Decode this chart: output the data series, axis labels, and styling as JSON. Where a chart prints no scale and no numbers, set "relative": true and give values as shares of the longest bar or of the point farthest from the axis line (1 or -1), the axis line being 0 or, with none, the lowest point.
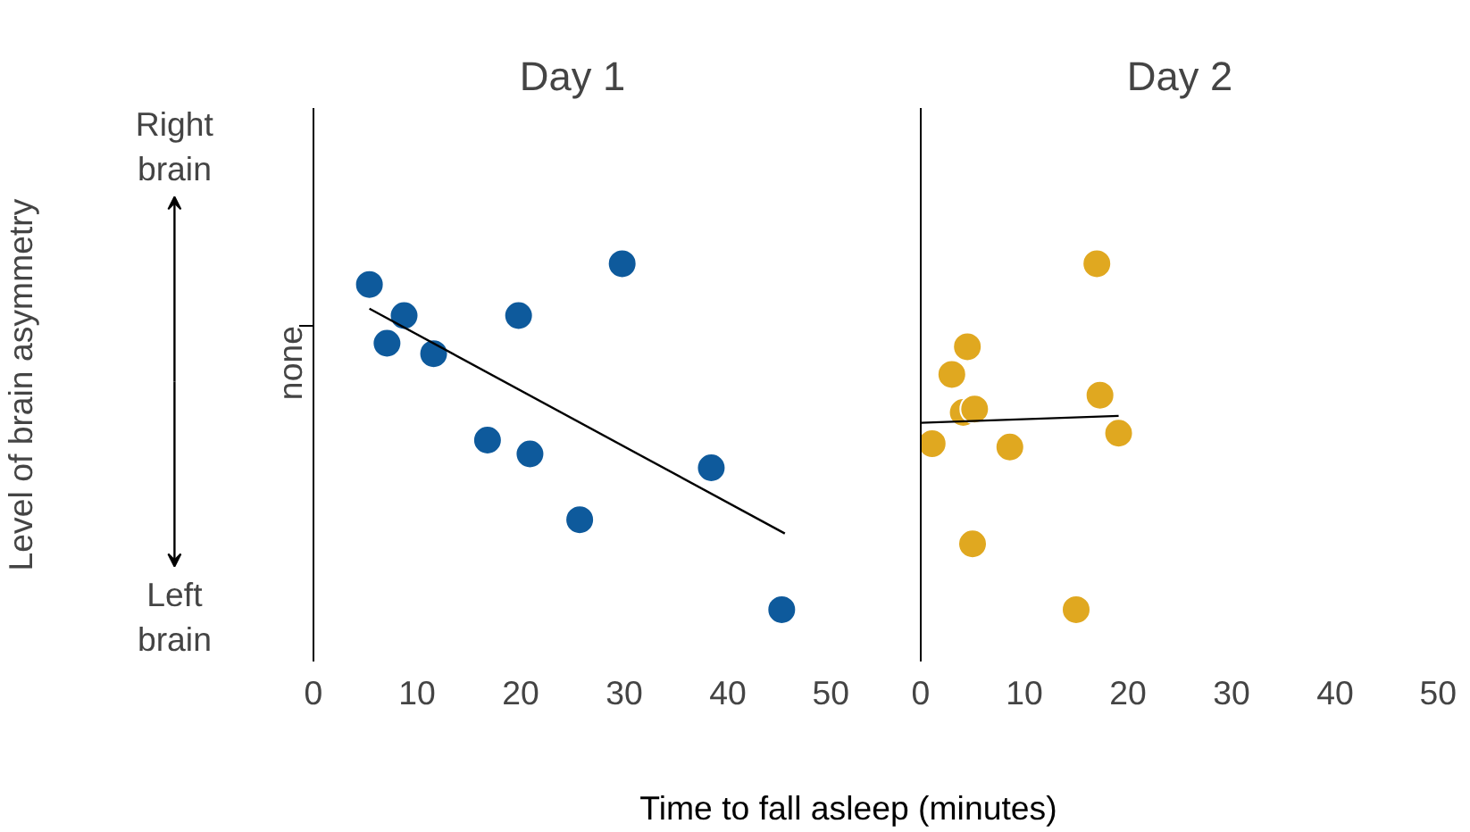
{
  "chart_data": [
    {
      "type": "scatter",
      "title": "Day 1",
      "xlabel": "Time to fall asleep (minutes)",
      "ylabel": "Level of brain asymmetry",
      "relative": true,
      "grid": false,
      "annotations": [
        "Right brain",
        "Left brain"
      ],
      "ref_lines": [
        {
          "axis": "y",
          "value": 0.82,
          "label": "none"
        }
      ],
      "xlim": [
        0,
        50
      ],
      "xticks": [
        0,
        10,
        20,
        30,
        40,
        50
      ],
      "series": [
        {
          "color": "#0e5a9c",
          "marker": "circle",
          "x": [
            5.4,
            7.1,
            8.75,
            11.6,
            16.8,
            19.8,
            20.9,
            25.7,
            29.8,
            38.4,
            45.2
          ],
          "values": [
            0.94,
            0.77,
            0.85,
            0.74,
            0.49,
            0.85,
            0.45,
            0.26,
            1,
            0.41,
            0
          ]
        },
        {
          "type": "line",
          "color": "#000000",
          "x": [
            5.4,
            45.5
          ],
          "values": [
            0.87,
            0.22
          ]
        }
      ]
    },
    {
      "type": "scatter",
      "title": "Day 2",
      "relative": true,
      "grid": false,
      "xlim": [
        0,
        50
      ],
      "xticks": [
        0,
        10,
        20,
        30,
        40,
        50
      ],
      "series": [
        {
          "color": "#e0a820",
          "marker": "circle",
          "x": [
            1.1,
            3.0,
            4.5,
            4.1,
            5.2,
            5.0,
            8.6,
            15.0,
            17.0,
            17.3,
            19.1
          ],
          "values": [
            0.48,
            0.68,
            0.76,
            0.57,
            0.58,
            0.19,
            0.47,
            0,
            1,
            0.62,
            0.51
          ]
        },
        {
          "type": "line",
          "color": "#000000",
          "x": [
            0,
            19.1
          ],
          "values": [
            0.54,
            0.56
          ]
        }
      ]
    }
  ]
}
